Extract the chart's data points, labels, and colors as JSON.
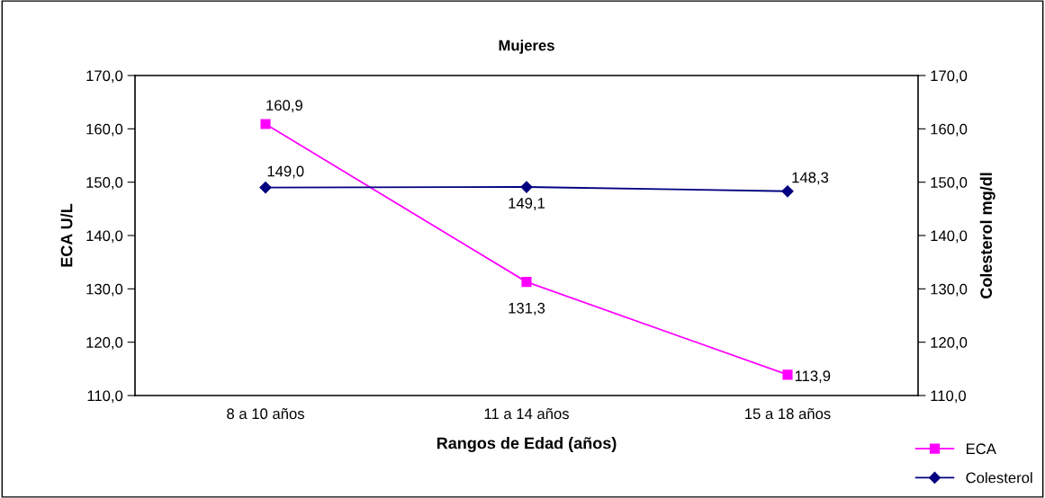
{
  "chart_data": {
    "type": "line",
    "title": "Mujeres",
    "xlabel": "Rangos de Edad (años)",
    "ylabel": "ECA U/L",
    "y2label": "Colesterol mg/dl",
    "categories": [
      "8 a 10 años",
      "11 a 14 años",
      "15 a 18 años"
    ],
    "series": [
      {
        "name": "ECA",
        "color": "#ff00ff",
        "marker": "square",
        "values": [
          160.9,
          131.3,
          113.9
        ],
        "value_labels": [
          "160,9",
          "131,3",
          "113,9"
        ]
      },
      {
        "name": "Colesterol",
        "color": "#000080",
        "marker": "diamond",
        "axis": "y2",
        "values": [
          149.0,
          149.1,
          148.3
        ],
        "value_labels": [
          "149,0",
          "149,1",
          "148,3"
        ]
      }
    ],
    "ylim": [
      110,
      170
    ],
    "yticks": [
      {
        "value": 110,
        "label": "110,0"
      },
      {
        "value": 120,
        "label": "120,0"
      },
      {
        "value": 130,
        "label": "130,0"
      },
      {
        "value": 140,
        "label": "140,0"
      },
      {
        "value": 150,
        "label": "150,0"
      },
      {
        "value": 160,
        "label": "160,0"
      },
      {
        "value": 170,
        "label": "170,0"
      }
    ],
    "y2lim": [
      110,
      170
    ],
    "y2ticks": [
      {
        "value": 110,
        "label": "110,0"
      },
      {
        "value": 120,
        "label": "120,0"
      },
      {
        "value": 130,
        "label": "130,0"
      },
      {
        "value": 140,
        "label": "140,0"
      },
      {
        "value": 150,
        "label": "150,0"
      },
      {
        "value": 160,
        "label": "160,0"
      },
      {
        "value": 170,
        "label": "170,0"
      }
    ],
    "legend": "bottom right",
    "grid": false,
    "line_style": "solid"
  }
}
